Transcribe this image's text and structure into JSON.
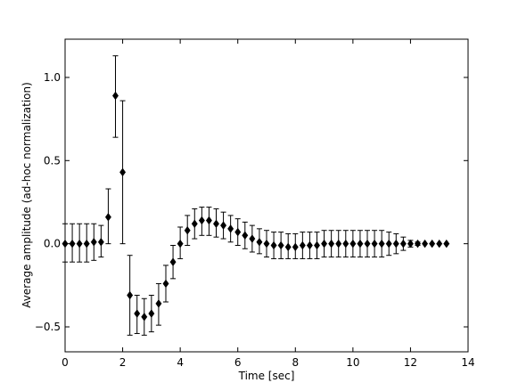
{
  "chart_data": {
    "type": "scatter",
    "title": "",
    "xlabel": "Time [sec]",
    "ylabel": "Average amplitude (ad-hoc normalization)",
    "xlim": [
      0,
      14
    ],
    "ylim": [
      -0.65,
      1.23
    ],
    "xticks": [
      0,
      2,
      4,
      6,
      8,
      10,
      12,
      14
    ],
    "xtick_labels": [
      "0",
      "2",
      "4",
      "6",
      "8",
      "10",
      "12",
      "14"
    ],
    "yticks": [
      -0.5,
      0.0,
      0.5,
      1.0
    ],
    "ytick_labels": [
      "−0.5",
      "0.0",
      "0.5",
      "1.0"
    ],
    "grid": false,
    "marker": "diamond",
    "series": [
      {
        "points": [
          {
            "x": 0.0,
            "y": 0.0,
            "lo": -0.11,
            "hi": 0.12
          },
          {
            "x": 0.25,
            "y": 0.0,
            "lo": -0.11,
            "hi": 0.12
          },
          {
            "x": 0.5,
            "y": 0.0,
            "lo": -0.11,
            "hi": 0.12
          },
          {
            "x": 0.75,
            "y": 0.0,
            "lo": -0.11,
            "hi": 0.12
          },
          {
            "x": 1.0,
            "y": 0.01,
            "lo": -0.1,
            "hi": 0.12
          },
          {
            "x": 1.25,
            "y": 0.01,
            "lo": -0.08,
            "hi": 0.11
          },
          {
            "x": 1.5,
            "y": 0.16,
            "lo": 0.0,
            "hi": 0.33
          },
          {
            "x": 1.75,
            "y": 0.89,
            "lo": 0.64,
            "hi": 1.13
          },
          {
            "x": 2.0,
            "y": 0.43,
            "lo": 0.0,
            "hi": 0.86
          },
          {
            "x": 2.25,
            "y": -0.31,
            "lo": -0.55,
            "hi": -0.07
          },
          {
            "x": 2.5,
            "y": -0.42,
            "lo": -0.54,
            "hi": -0.31
          },
          {
            "x": 2.75,
            "y": -0.44,
            "lo": -0.55,
            "hi": -0.33
          },
          {
            "x": 3.0,
            "y": -0.42,
            "lo": -0.53,
            "hi": -0.31
          },
          {
            "x": 3.25,
            "y": -0.36,
            "lo": -0.49,
            "hi": -0.24
          },
          {
            "x": 3.5,
            "y": -0.24,
            "lo": -0.35,
            "hi": -0.13
          },
          {
            "x": 3.75,
            "y": -0.11,
            "lo": -0.21,
            "hi": -0.01
          },
          {
            "x": 4.0,
            "y": 0.0,
            "lo": -0.09,
            "hi": 0.1
          },
          {
            "x": 4.25,
            "y": 0.08,
            "lo": -0.01,
            "hi": 0.17
          },
          {
            "x": 4.5,
            "y": 0.12,
            "lo": 0.03,
            "hi": 0.21
          },
          {
            "x": 4.75,
            "y": 0.14,
            "lo": 0.05,
            "hi": 0.22
          },
          {
            "x": 5.0,
            "y": 0.14,
            "lo": 0.05,
            "hi": 0.22
          },
          {
            "x": 5.25,
            "y": 0.12,
            "lo": 0.04,
            "hi": 0.21
          },
          {
            "x": 5.5,
            "y": 0.11,
            "lo": 0.03,
            "hi": 0.19
          },
          {
            "x": 5.75,
            "y": 0.09,
            "lo": 0.01,
            "hi": 0.17
          },
          {
            "x": 6.0,
            "y": 0.07,
            "lo": -0.01,
            "hi": 0.15
          },
          {
            "x": 6.25,
            "y": 0.05,
            "lo": -0.03,
            "hi": 0.13
          },
          {
            "x": 6.5,
            "y": 0.03,
            "lo": -0.05,
            "hi": 0.11
          },
          {
            "x": 6.75,
            "y": 0.01,
            "lo": -0.06,
            "hi": 0.09
          },
          {
            "x": 7.0,
            "y": 0.0,
            "lo": -0.08,
            "hi": 0.08
          },
          {
            "x": 7.25,
            "y": -0.01,
            "lo": -0.09,
            "hi": 0.07
          },
          {
            "x": 7.5,
            "y": -0.01,
            "lo": -0.09,
            "hi": 0.07
          },
          {
            "x": 7.75,
            "y": -0.02,
            "lo": -0.09,
            "hi": 0.06
          },
          {
            "x": 8.0,
            "y": -0.02,
            "lo": -0.09,
            "hi": 0.06
          },
          {
            "x": 8.25,
            "y": -0.01,
            "lo": -0.09,
            "hi": 0.07
          },
          {
            "x": 8.5,
            "y": -0.01,
            "lo": -0.09,
            "hi": 0.07
          },
          {
            "x": 8.75,
            "y": -0.01,
            "lo": -0.09,
            "hi": 0.07
          },
          {
            "x": 9.0,
            "y": 0.0,
            "lo": -0.08,
            "hi": 0.08
          },
          {
            "x": 9.25,
            "y": 0.0,
            "lo": -0.08,
            "hi": 0.08
          },
          {
            "x": 9.5,
            "y": 0.0,
            "lo": -0.08,
            "hi": 0.08
          },
          {
            "x": 9.75,
            "y": 0.0,
            "lo": -0.08,
            "hi": 0.08
          },
          {
            "x": 10.0,
            "y": 0.0,
            "lo": -0.08,
            "hi": 0.08
          },
          {
            "x": 10.25,
            "y": 0.0,
            "lo": -0.08,
            "hi": 0.08
          },
          {
            "x": 10.5,
            "y": 0.0,
            "lo": -0.08,
            "hi": 0.08
          },
          {
            "x": 10.75,
            "y": 0.0,
            "lo": -0.08,
            "hi": 0.08
          },
          {
            "x": 11.0,
            "y": 0.0,
            "lo": -0.08,
            "hi": 0.08
          },
          {
            "x": 11.25,
            "y": 0.0,
            "lo": -0.07,
            "hi": 0.07
          },
          {
            "x": 11.5,
            "y": 0.0,
            "lo": -0.06,
            "hi": 0.06
          },
          {
            "x": 11.75,
            "y": 0.0,
            "lo": -0.04,
            "hi": 0.04
          },
          {
            "x": 12.0,
            "y": 0.0,
            "lo": -0.02,
            "hi": 0.02
          },
          {
            "x": 12.25,
            "y": 0.0,
            "lo": -0.01,
            "hi": 0.01
          },
          {
            "x": 12.5,
            "y": 0.0,
            "lo": 0.0,
            "hi": 0.0
          },
          {
            "x": 12.75,
            "y": 0.0,
            "lo": 0.0,
            "hi": 0.0
          },
          {
            "x": 13.0,
            "y": 0.0,
            "lo": 0.0,
            "hi": 0.0
          },
          {
            "x": 13.25,
            "y": 0.0,
            "lo": 0.0,
            "hi": 0.0
          }
        ]
      }
    ]
  }
}
